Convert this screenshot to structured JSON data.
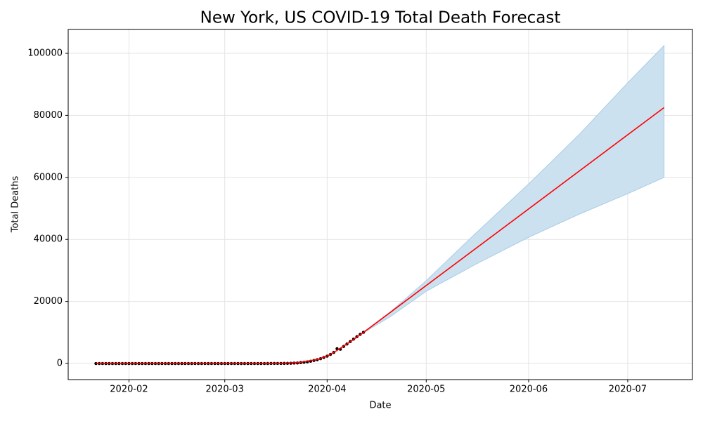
{
  "chart_data": {
    "type": "forecast",
    "title": "New York, US COVID-19 Total Death Forecast",
    "x_label": "Date",
    "y_label": "Total Deaths",
    "xlim": [
      18274.6,
      18463.6
    ],
    "xticks": [
      {
        "value": 18293,
        "label": "2020-02"
      },
      {
        "value": 18322,
        "label": "2020-03"
      },
      {
        "value": 18353,
        "label": "2020-04"
      },
      {
        "value": 18383,
        "label": "2020-05"
      },
      {
        "value": 18414,
        "label": "2020-06"
      },
      {
        "value": 18444,
        "label": "2020-07"
      }
    ],
    "ylim": [
      -5200,
      107700
    ],
    "yticks": [
      0,
      20000,
      40000,
      60000,
      80000,
      100000
    ],
    "grid": true,
    "observed": {
      "color": "#000000",
      "x": [
        18283,
        18284,
        18285,
        18286,
        18287,
        18288,
        18289,
        18290,
        18291,
        18292,
        18293,
        18294,
        18295,
        18296,
        18297,
        18298,
        18299,
        18300,
        18301,
        18302,
        18303,
        18304,
        18305,
        18306,
        18307,
        18308,
        18309,
        18310,
        18311,
        18312,
        18313,
        18314,
        18315,
        18316,
        18317,
        18318,
        18319,
        18320,
        18321,
        18322,
        18323,
        18324,
        18325,
        18326,
        18327,
        18328,
        18329,
        18330,
        18331,
        18332,
        18333,
        18334,
        18335,
        18336,
        18337,
        18338,
        18339,
        18340,
        18341,
        18342,
        18343,
        18344,
        18345,
        18346,
        18347,
        18348,
        18349,
        18350,
        18351,
        18352,
        18353,
        18354,
        18355,
        18356,
        18357,
        18358,
        18359,
        18360,
        18361,
        18362,
        18363,
        18364
      ],
      "values": [
        0,
        0,
        0,
        0,
        0,
        0,
        0,
        0,
        0,
        0,
        0,
        0,
        0,
        0,
        0,
        0,
        0,
        0,
        0,
        0,
        0,
        0,
        0,
        0,
        0,
        0,
        0,
        0,
        0,
        0,
        0,
        0,
        0,
        0,
        0,
        0,
        0,
        0,
        0,
        0,
        0,
        0,
        0,
        0,
        0,
        0,
        0,
        0,
        0,
        0,
        0,
        0,
        2,
        6,
        10,
        17,
        27,
        30,
        57,
        80,
        122,
        159,
        285,
        385,
        519,
        728,
        965,
        1218,
        1550,
        1941,
        2373,
        2935,
        3565,
        4758,
        4600,
        5489,
        6268,
        7067,
        7844,
        8627,
        9385,
        10056
      ]
    },
    "forecast": {
      "color": "#ff0000",
      "x": [
        18283,
        18335,
        18340,
        18345,
        18350,
        18353,
        18356,
        18360,
        18364,
        18455
      ],
      "values": [
        0,
        0,
        100,
        400,
        1300,
        2400,
        4200,
        7000,
        10000,
        82500
      ]
    },
    "interval": {
      "color": "#cbe1ef",
      "edge_color": "#a9cde6",
      "x": [
        18364,
        18372,
        18383,
        18398,
        18414,
        18429,
        18444,
        18455
      ],
      "upper": [
        10100,
        16500,
        26700,
        42000,
        57900,
        73500,
        90500,
        102500
      ],
      "lower": [
        9900,
        15000,
        23300,
        32000,
        40700,
        48000,
        54750,
        60000
      ]
    }
  }
}
